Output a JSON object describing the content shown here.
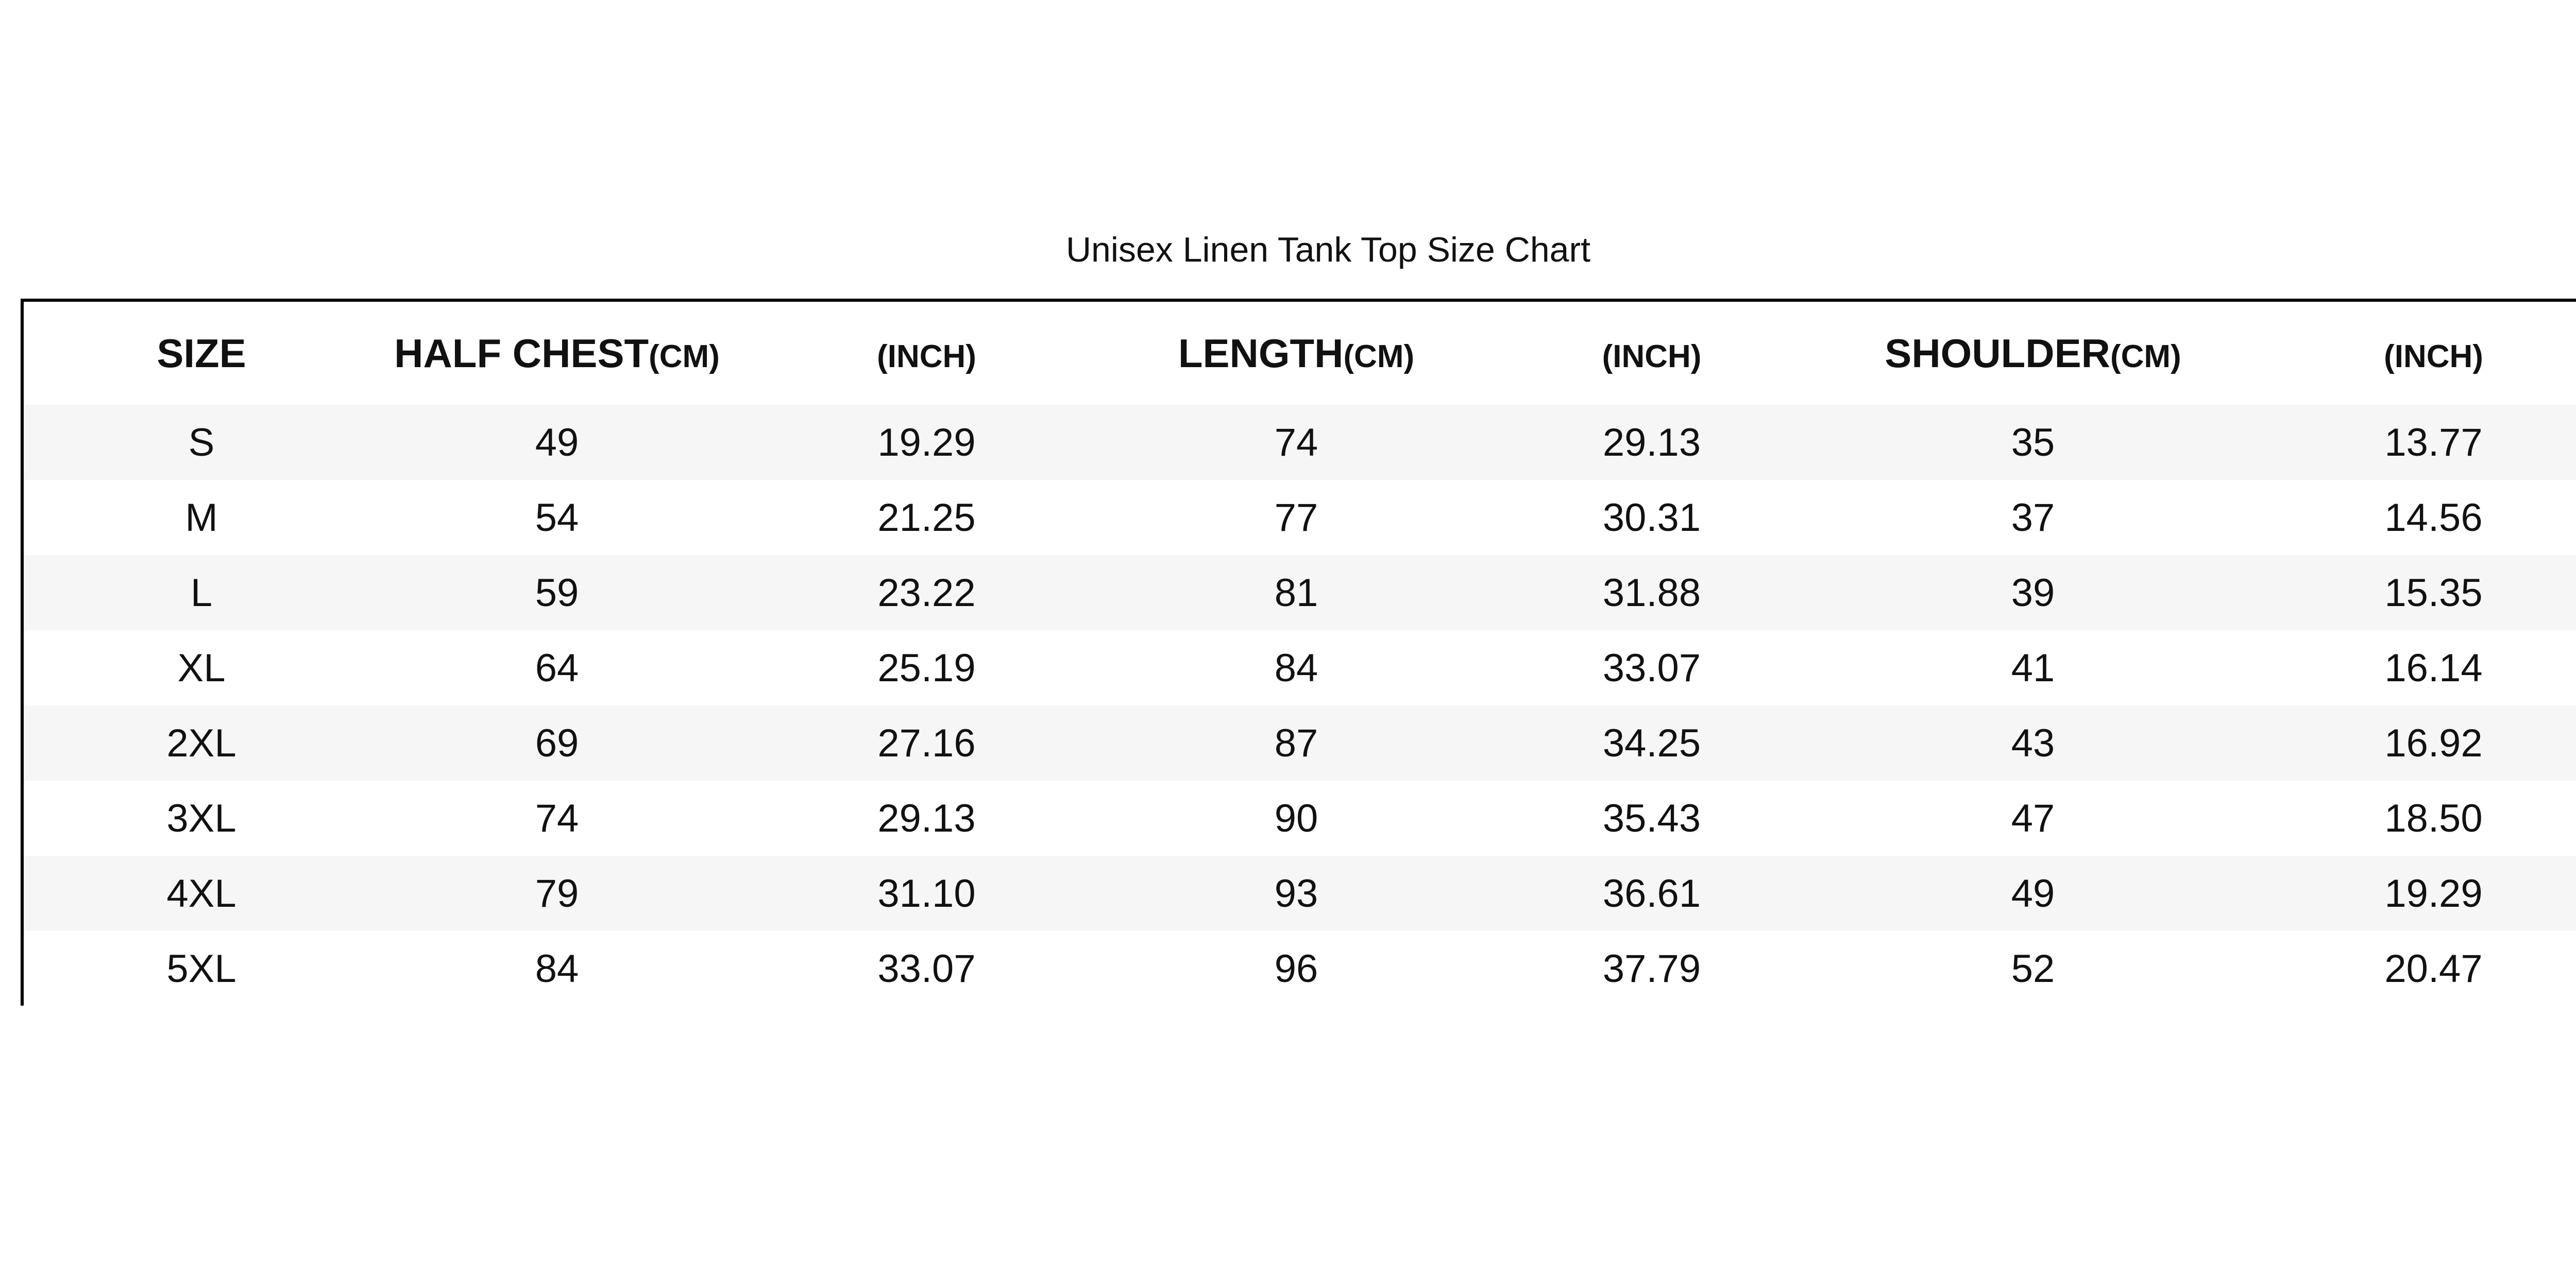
{
  "chart_data": {
    "type": "table",
    "title": "Unisex Linen Tank Top Size Chart",
    "columns": [
      {
        "name": "SIZE",
        "unit": ""
      },
      {
        "name": "HALF CHEST",
        "unit": "(CM)"
      },
      {
        "name": "",
        "unit": "(INCH)"
      },
      {
        "name": "LENGTH",
        "unit": "(CM)"
      },
      {
        "name": "",
        "unit": "(INCH)"
      },
      {
        "name": "SHOULDER",
        "unit": "(CM)"
      },
      {
        "name": "",
        "unit": "(INCH)"
      }
    ],
    "rows": [
      [
        "S",
        "49",
        "19.29",
        "74",
        "29.13",
        "35",
        "13.77"
      ],
      [
        "M",
        "54",
        "21.25",
        "77",
        "30.31",
        "37",
        "14.56"
      ],
      [
        "L",
        "59",
        "23.22",
        "81",
        "31.88",
        "39",
        "15.35"
      ],
      [
        "XL",
        "64",
        "25.19",
        "84",
        "33.07",
        "41",
        "16.14"
      ],
      [
        "2XL",
        "69",
        "27.16",
        "87",
        "34.25",
        "43",
        "16.92"
      ],
      [
        "3XL",
        "74",
        "29.13",
        "90",
        "35.43",
        "47",
        "18.50"
      ],
      [
        "4XL",
        "79",
        "31.10",
        "93",
        "36.61",
        "49",
        "19.29"
      ],
      [
        "5XL",
        "84",
        "33.07",
        "96",
        "37.79",
        "52",
        "20.47"
      ]
    ],
    "colors": {
      "border": "#000000",
      "stripe": "#f6f6f6",
      "background": "#ffffff"
    }
  }
}
